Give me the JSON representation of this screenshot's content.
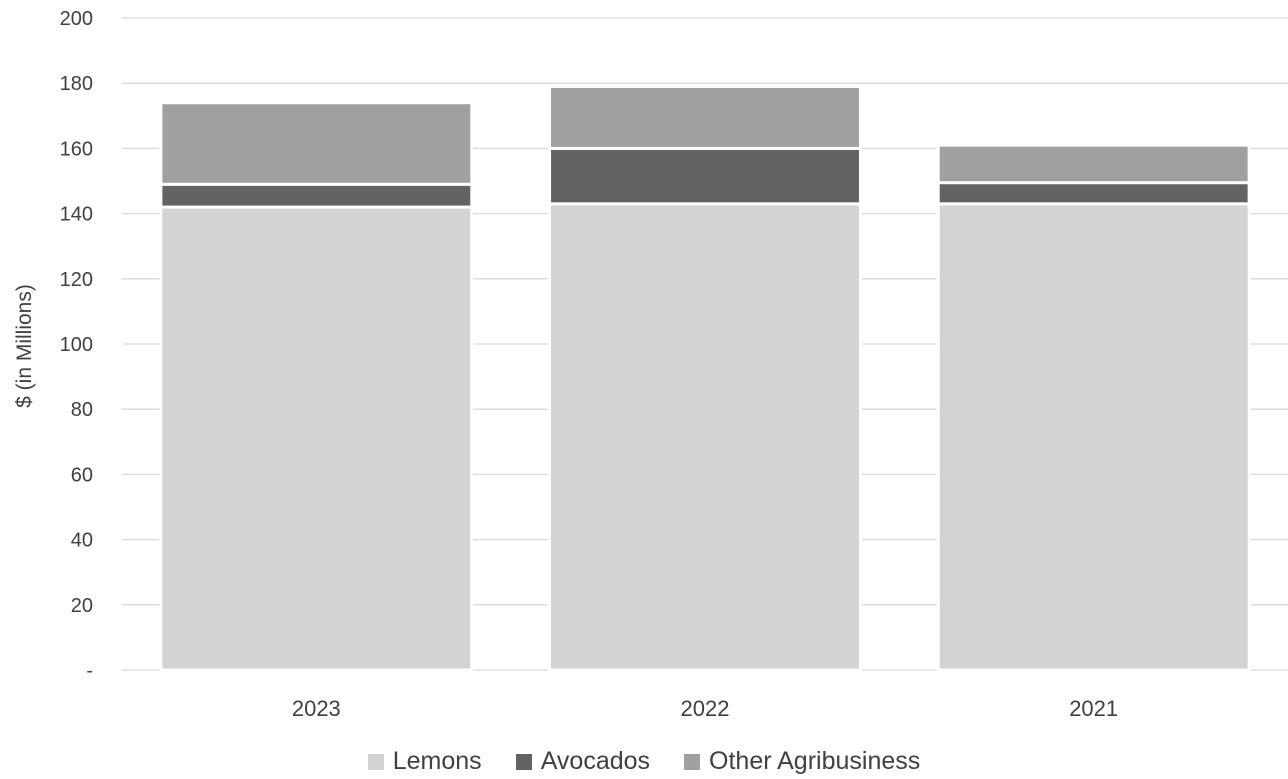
{
  "chart_data": {
    "type": "bar",
    "stacked": true,
    "categories": [
      "2023",
      "2022",
      "2021"
    ],
    "series": [
      {
        "name": "Lemons",
        "values": [
          142,
          143,
          143
        ],
        "color": "#d3d3d3"
      },
      {
        "name": "Avocados",
        "values": [
          7,
          17,
          6.5
        ],
        "color": "#636363"
      },
      {
        "name": "Other Agribusiness",
        "values": [
          25,
          19,
          11.5
        ],
        "color": "#a0a0a0"
      }
    ],
    "ylabel": "$ (in Millions)",
    "xlabel": "",
    "ylim": [
      0,
      200
    ],
    "yticks": [
      0,
      20,
      40,
      60,
      80,
      100,
      120,
      140,
      160,
      180,
      200
    ],
    "ytick_labels": [
      "-",
      "20",
      "40",
      "60",
      "80",
      "100",
      "120",
      "140",
      "160",
      "180",
      "200"
    ],
    "grid": true,
    "legend_position": "bottom"
  }
}
